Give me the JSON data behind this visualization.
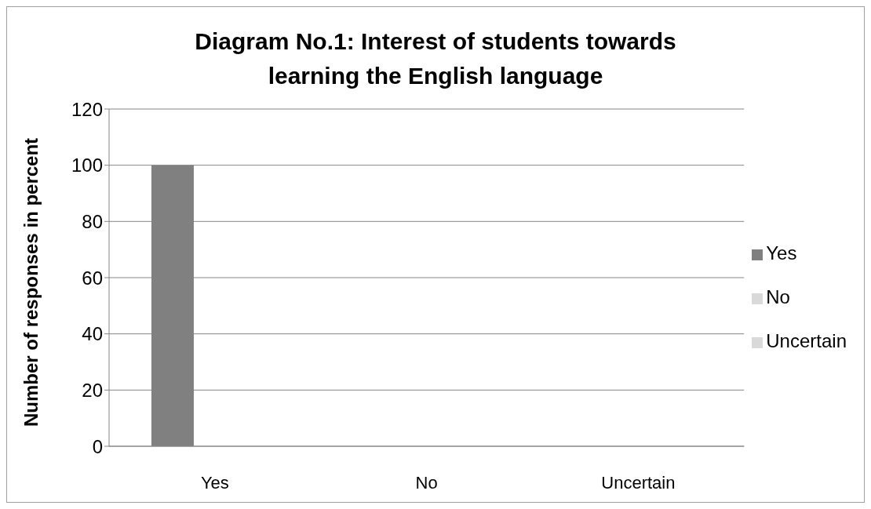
{
  "chart_data": {
    "type": "bar",
    "title": "Diagram No.1: Interest of students towards learning the English language",
    "ylabel": "Number of responses in percent",
    "categories": [
      "Yes",
      "No",
      "Uncertain"
    ],
    "series": [
      {
        "name": "Yes",
        "color": "#808080",
        "values": [
          100,
          null,
          null
        ]
      },
      {
        "name": "No",
        "color": "#d9d9d9",
        "values": [
          null,
          0,
          null
        ]
      },
      {
        "name": "Uncertain",
        "color": "#d9d9d9",
        "values": [
          null,
          null,
          0
        ]
      }
    ],
    "ylim": [
      0,
      120
    ],
    "yticks": [
      0,
      20,
      40,
      60,
      80,
      100,
      120
    ],
    "grid": "y",
    "legend": "right"
  }
}
